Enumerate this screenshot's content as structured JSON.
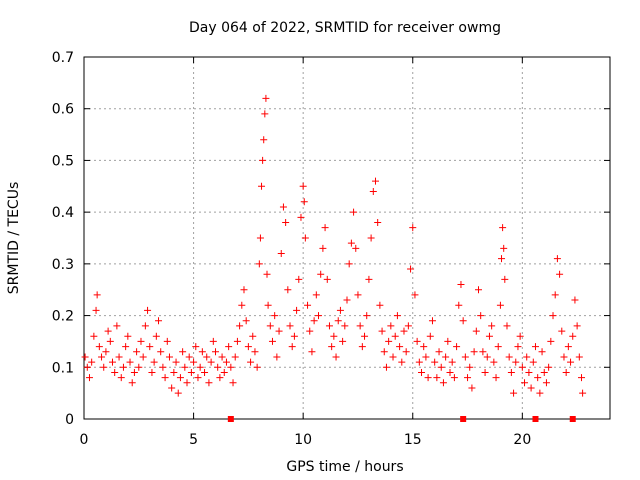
{
  "chart_data": {
    "type": "scatter",
    "title": "Day 064 of 2022, SRMTID for receiver owmg",
    "xlabel": "GPS time / hours",
    "ylabel": "SRMTID / TECUs",
    "xlim": [
      0,
      24
    ],
    "ylim": [
      0,
      0.7
    ],
    "xticks": [
      0,
      5,
      10,
      15,
      20
    ],
    "xtick_labels": [
      "0",
      "5",
      "10",
      "15",
      "20"
    ],
    "yticks": [
      0,
      0.1,
      0.2,
      0.3,
      0.4,
      0.5,
      0.6,
      0.7
    ],
    "ytick_labels": [
      "0",
      "0.1",
      "0.2",
      "0.3",
      "0.4",
      "0.5",
      "0.6",
      "0.7"
    ],
    "grid": true,
    "marker": "+",
    "series": [
      {
        "name": "SRMTID",
        "color": "#ff0000",
        "points": [
          [
            0.05,
            0.12
          ],
          [
            0.15,
            0.1
          ],
          [
            0.25,
            0.08
          ],
          [
            0.35,
            0.11
          ],
          [
            0.45,
            0.16
          ],
          [
            0.55,
            0.21
          ],
          [
            0.6,
            0.24
          ],
          [
            0.7,
            0.14
          ],
          [
            0.8,
            0.12
          ],
          [
            0.9,
            0.1
          ],
          [
            1.0,
            0.13
          ],
          [
            1.1,
            0.17
          ],
          [
            1.2,
            0.15
          ],
          [
            1.3,
            0.11
          ],
          [
            1.4,
            0.09
          ],
          [
            1.5,
            0.18
          ],
          [
            1.6,
            0.12
          ],
          [
            1.7,
            0.08
          ],
          [
            1.8,
            0.1
          ],
          [
            1.9,
            0.14
          ],
          [
            2.0,
            0.16
          ],
          [
            2.1,
            0.11
          ],
          [
            2.2,
            0.07
          ],
          [
            2.3,
            0.09
          ],
          [
            2.4,
            0.13
          ],
          [
            2.5,
            0.1
          ],
          [
            2.6,
            0.15
          ],
          [
            2.7,
            0.12
          ],
          [
            2.8,
            0.18
          ],
          [
            2.9,
            0.21
          ],
          [
            3.0,
            0.14
          ],
          [
            3.1,
            0.09
          ],
          [
            3.2,
            0.11
          ],
          [
            3.3,
            0.16
          ],
          [
            3.4,
            0.19
          ],
          [
            3.5,
            0.13
          ],
          [
            3.6,
            0.1
          ],
          [
            3.7,
            0.08
          ],
          [
            3.8,
            0.15
          ],
          [
            3.9,
            0.12
          ],
          [
            4.0,
            0.06
          ],
          [
            4.1,
            0.09
          ],
          [
            4.2,
            0.11
          ],
          [
            4.3,
            0.05
          ],
          [
            4.4,
            0.08
          ],
          [
            4.5,
            0.13
          ],
          [
            4.6,
            0.1
          ],
          [
            4.7,
            0.07
          ],
          [
            4.8,
            0.12
          ],
          [
            4.9,
            0.09
          ],
          [
            5.0,
            0.11
          ],
          [
            5.1,
            0.14
          ],
          [
            5.2,
            0.08
          ],
          [
            5.3,
            0.1
          ],
          [
            5.4,
            0.13
          ],
          [
            5.5,
            0.09
          ],
          [
            5.6,
            0.12
          ],
          [
            5.7,
            0.07
          ],
          [
            5.8,
            0.11
          ],
          [
            5.9,
            0.15
          ],
          [
            6.0,
            0.13
          ],
          [
            6.1,
            0.1
          ],
          [
            6.2,
            0.08
          ],
          [
            6.3,
            0.12
          ],
          [
            6.4,
            0.09
          ],
          [
            6.5,
            0.11
          ],
          [
            6.6,
            0.14
          ],
          [
            6.7,
            0.1
          ],
          [
            6.8,
            0.07
          ],
          [
            6.9,
            0.12
          ],
          [
            7.0,
            0.15
          ],
          [
            7.1,
            0.18
          ],
          [
            7.2,
            0.22
          ],
          [
            7.3,
            0.25
          ],
          [
            7.4,
            0.19
          ],
          [
            7.5,
            0.14
          ],
          [
            7.6,
            0.11
          ],
          [
            7.7,
            0.16
          ],
          [
            7.8,
            0.13
          ],
          [
            7.9,
            0.1
          ],
          [
            8.0,
            0.3
          ],
          [
            8.05,
            0.35
          ],
          [
            8.1,
            0.45
          ],
          [
            8.15,
            0.5
          ],
          [
            8.2,
            0.54
          ],
          [
            8.25,
            0.59
          ],
          [
            8.3,
            0.62
          ],
          [
            8.35,
            0.28
          ],
          [
            8.4,
            0.22
          ],
          [
            8.5,
            0.18
          ],
          [
            8.6,
            0.15
          ],
          [
            8.7,
            0.2
          ],
          [
            8.8,
            0.12
          ],
          [
            8.9,
            0.17
          ],
          [
            9.0,
            0.32
          ],
          [
            9.1,
            0.41
          ],
          [
            9.2,
            0.38
          ],
          [
            9.3,
            0.25
          ],
          [
            9.4,
            0.18
          ],
          [
            9.5,
            0.14
          ],
          [
            9.6,
            0.16
          ],
          [
            9.7,
            0.21
          ],
          [
            9.8,
            0.27
          ],
          [
            9.9,
            0.39
          ],
          [
            10.0,
            0.45
          ],
          [
            10.05,
            0.42
          ],
          [
            10.1,
            0.35
          ],
          [
            10.2,
            0.22
          ],
          [
            10.3,
            0.17
          ],
          [
            10.4,
            0.13
          ],
          [
            10.5,
            0.19
          ],
          [
            10.6,
            0.24
          ],
          [
            10.7,
            0.2
          ],
          [
            10.8,
            0.28
          ],
          [
            10.9,
            0.33
          ],
          [
            11.0,
            0.37
          ],
          [
            11.1,
            0.27
          ],
          [
            11.2,
            0.18
          ],
          [
            11.3,
            0.14
          ],
          [
            11.4,
            0.16
          ],
          [
            11.5,
            0.12
          ],
          [
            11.6,
            0.19
          ],
          [
            11.7,
            0.21
          ],
          [
            11.8,
            0.15
          ],
          [
            11.9,
            0.18
          ],
          [
            12.0,
            0.23
          ],
          [
            12.1,
            0.3
          ],
          [
            12.2,
            0.34
          ],
          [
            12.3,
            0.4
          ],
          [
            12.4,
            0.33
          ],
          [
            12.5,
            0.24
          ],
          [
            12.6,
            0.18
          ],
          [
            12.7,
            0.14
          ],
          [
            12.8,
            0.16
          ],
          [
            12.9,
            0.2
          ],
          [
            13.0,
            0.27
          ],
          [
            13.1,
            0.35
          ],
          [
            13.2,
            0.44
          ],
          [
            13.3,
            0.46
          ],
          [
            13.4,
            0.38
          ],
          [
            13.5,
            0.22
          ],
          [
            13.6,
            0.17
          ],
          [
            13.7,
            0.13
          ],
          [
            13.8,
            0.1
          ],
          [
            13.9,
            0.15
          ],
          [
            14.0,
            0.18
          ],
          [
            14.1,
            0.12
          ],
          [
            14.2,
            0.16
          ],
          [
            14.3,
            0.2
          ],
          [
            14.4,
            0.14
          ],
          [
            14.5,
            0.11
          ],
          [
            14.6,
            0.17
          ],
          [
            14.7,
            0.13
          ],
          [
            14.8,
            0.18
          ],
          [
            14.9,
            0.29
          ],
          [
            15.0,
            0.37
          ],
          [
            15.1,
            0.24
          ],
          [
            15.2,
            0.15
          ],
          [
            15.3,
            0.11
          ],
          [
            15.4,
            0.09
          ],
          [
            15.5,
            0.14
          ],
          [
            15.6,
            0.12
          ],
          [
            15.7,
            0.08
          ],
          [
            15.8,
            0.16
          ],
          [
            15.9,
            0.19
          ],
          [
            16.0,
            0.11
          ],
          [
            16.1,
            0.08
          ],
          [
            16.2,
            0.13
          ],
          [
            16.3,
            0.1
          ],
          [
            16.4,
            0.07
          ],
          [
            16.5,
            0.12
          ],
          [
            16.6,
            0.15
          ],
          [
            16.7,
            0.09
          ],
          [
            16.8,
            0.11
          ],
          [
            16.9,
            0.08
          ],
          [
            17.0,
            0.14
          ],
          [
            17.1,
            0.22
          ],
          [
            17.2,
            0.26
          ],
          [
            17.3,
            0.19
          ],
          [
            17.4,
            0.12
          ],
          [
            17.5,
            0.08
          ],
          [
            17.6,
            0.1
          ],
          [
            17.7,
            0.06
          ],
          [
            17.8,
            0.13
          ],
          [
            17.9,
            0.17
          ],
          [
            18.0,
            0.25
          ],
          [
            18.1,
            0.2
          ],
          [
            18.2,
            0.13
          ],
          [
            18.3,
            0.09
          ],
          [
            18.4,
            0.12
          ],
          [
            18.5,
            0.16
          ],
          [
            18.6,
            0.18
          ],
          [
            18.7,
            0.11
          ],
          [
            18.8,
            0.08
          ],
          [
            18.9,
            0.14
          ],
          [
            19.0,
            0.22
          ],
          [
            19.05,
            0.31
          ],
          [
            19.1,
            0.37
          ],
          [
            19.15,
            0.33
          ],
          [
            19.2,
            0.27
          ],
          [
            19.3,
            0.18
          ],
          [
            19.4,
            0.12
          ],
          [
            19.5,
            0.09
          ],
          [
            19.6,
            0.05
          ],
          [
            19.7,
            0.11
          ],
          [
            19.8,
            0.14
          ],
          [
            19.9,
            0.16
          ],
          [
            20.0,
            0.1
          ],
          [
            20.1,
            0.07
          ],
          [
            20.2,
            0.12
          ],
          [
            20.3,
            0.09
          ],
          [
            20.4,
            0.06
          ],
          [
            20.5,
            0.11
          ],
          [
            20.6,
            0.14
          ],
          [
            20.7,
            0.08
          ],
          [
            20.8,
            0.05
          ],
          [
            20.9,
            0.13
          ],
          [
            21.0,
            0.09
          ],
          [
            21.1,
            0.07
          ],
          [
            21.2,
            0.1
          ],
          [
            21.3,
            0.15
          ],
          [
            21.4,
            0.2
          ],
          [
            21.5,
            0.24
          ],
          [
            21.6,
            0.31
          ],
          [
            21.7,
            0.28
          ],
          [
            21.8,
            0.17
          ],
          [
            21.9,
            0.12
          ],
          [
            22.0,
            0.09
          ],
          [
            22.1,
            0.14
          ],
          [
            22.2,
            0.11
          ],
          [
            22.3,
            0.16
          ],
          [
            22.4,
            0.23
          ],
          [
            22.5,
            0.18
          ],
          [
            22.6,
            0.12
          ],
          [
            22.7,
            0.08
          ],
          [
            22.75,
            0.05
          ]
        ]
      }
    ],
    "gap_markers_x": [
      6.7,
      17.3,
      20.6,
      22.3
    ]
  }
}
